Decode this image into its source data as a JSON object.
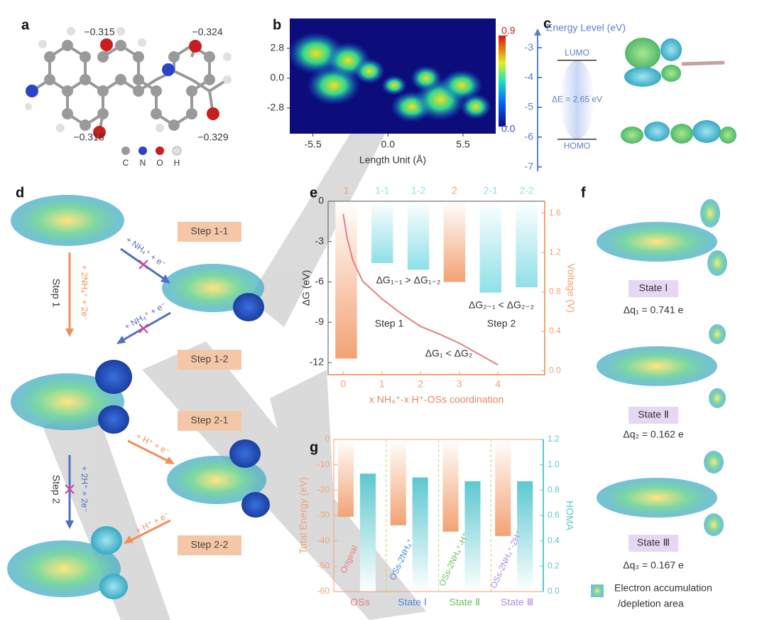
{
  "panel_labels": [
    "a",
    "b",
    "c",
    "d",
    "e",
    "f",
    "g"
  ],
  "panel_a": {
    "charges": [
      "−0.315",
      "−0.324",
      "−0.318",
      "−0.329"
    ],
    "legend": [
      "C",
      "N",
      "O",
      "H"
    ]
  },
  "panel_d": {
    "steps": [
      "Step 1-1",
      "Step 1-2",
      "Step 2-1",
      "Step 2-2"
    ],
    "stages": [
      "Step 1",
      "Step 2"
    ],
    "reagents": [
      "+ NH₄⁺ + e⁻",
      "+ NH₄⁺ + e⁻",
      "+ 2NH₄⁺ + 2e⁻",
      "+ H⁺ + e⁻",
      "+ H⁺ + e⁻",
      "+ 2H⁺ + 2e⁻"
    ]
  },
  "panel_f": {
    "states": [
      {
        "label": "State Ⅰ",
        "charge": "Δq₁ = 0.741 e"
      },
      {
        "label": "State Ⅱ",
        "charge": "Δq₂ = 0.162 e"
      },
      {
        "label": "State Ⅲ",
        "charge": "Δq₃ = 0.167 e"
      }
    ],
    "legend": [
      "Electron accumulation",
      "/depletion area"
    ]
  },
  "chart_data": [
    {
      "type": "heatmap",
      "xlabel": "Length Unit (Å)",
      "xlim": [
        -7.2,
        7.9
      ],
      "xticks": [
        -5.5,
        {
          "value": 0,
          "label": "0.0"
        },
        5.5
      ],
      "ylim": [
        -5.2,
        5.6
      ],
      "yticks": [
        2.8,
        {
          "value": 0,
          "label": "0.0"
        },
        -2.8
      ],
      "clim": [
        0,
        0.9
      ],
      "cticks": [
        0.9,
        {
          "value": 0,
          "label": "0.0"
        }
      ]
    },
    {
      "type": "energy-level",
      "title": "Energy Level (eV)",
      "color": "#5b7fc7",
      "ylim": [
        -7.15,
        -2.4
      ],
      "yticks": [
        -3,
        -4,
        -5,
        -6,
        -7
      ],
      "levels": [
        {
          "name": "LUMO",
          "value": -3.42
        },
        {
          "name": "HOMO",
          "value": -6.07
        }
      ],
      "annotation": "ΔE = 2.65 eV"
    },
    {
      "type": "bar-line",
      "categories": [
        "1",
        "1-1",
        "1-2",
        "2",
        "2-1",
        "2-2"
      ],
      "values": [
        -11.7,
        -4.6,
        -5.1,
        -6.0,
        -6.8,
        -6.4
      ],
      "colors": [
        "#f2a273",
        "#8fe0e8",
        "#8fe0e8",
        "#f2a273",
        "#8fe0e8",
        "#8fe0e8"
      ],
      "ylim": [
        -12.9,
        0
      ],
      "yticks": [
        0,
        -3,
        -6,
        -9,
        -12
      ],
      "ylabel": "ΔG (eV)",
      "xlim": [
        -0.39,
        5.21
      ],
      "xticks": [
        0,
        1,
        2,
        3,
        4
      ],
      "xlabel": "x NH₄⁺-x H⁺-OSs coordination",
      "y2lim": [
        -0.04,
        1.72
      ],
      "y2ticks": [
        {
          "value": 0,
          "label": "0.0"
        },
        0.4,
        0.8,
        1.2,
        1.6
      ],
      "y2label": "Voltage (V)",
      "line": {
        "x": [
          0,
          0.1,
          0.25,
          0.5,
          1,
          1.5,
          2,
          2.5,
          3,
          3.5,
          4
        ],
        "values": [
          1.59,
          1.35,
          1.12,
          0.91,
          0.73,
          0.58,
          0.45,
          0.37,
          0.28,
          0.17,
          0.06
        ],
        "color": "#e48080",
        "axis": "y2"
      },
      "annotations": [
        "ΔG₁₋₁ > ΔG₁₋₂",
        "ΔG₂₋₁ < ΔG₂₋₂",
        "Step 1",
        "Step 2",
        "ΔG₁ < ΔG₂"
      ]
    },
    {
      "type": "grouped-bar",
      "categories": [
        "OSs",
        "State Ⅰ",
        "State Ⅱ",
        "State Ⅲ"
      ],
      "category_colors": [
        "#e88080",
        "#4a8ad8",
        "#6cbf5a",
        "#b08ae0"
      ],
      "bar_labels": [
        "Original",
        "OSs-2NH₄⁺",
        "OSs-2NH₄⁺-H⁺",
        "OSs-2NH₄⁺-2H⁺"
      ],
      "energy": {
        "values": [
          -30.5,
          -33.9,
          -36.4,
          -38.1
        ],
        "color": "#f2a273"
      },
      "homa": {
        "values": [
          0.93,
          0.9,
          0.87,
          0.87
        ],
        "color": "#5cc8d0",
        "axis": "y2"
      },
      "ylim": [
        -60,
        0
      ],
      "yticks": [
        0,
        -10,
        -20,
        -30,
        -40,
        -50,
        -60
      ],
      "ylabel": "Total Energy (eV)",
      "y2lim": [
        0,
        1.2
      ],
      "y2ticks": [
        {
          "value": 0,
          "label": "0.0"
        },
        0.2,
        0.4,
        0.6,
        0.8,
        {
          "value": 1,
          "label": "1.0"
        },
        1.2
      ],
      "y2label": "HOMA"
    }
  ]
}
